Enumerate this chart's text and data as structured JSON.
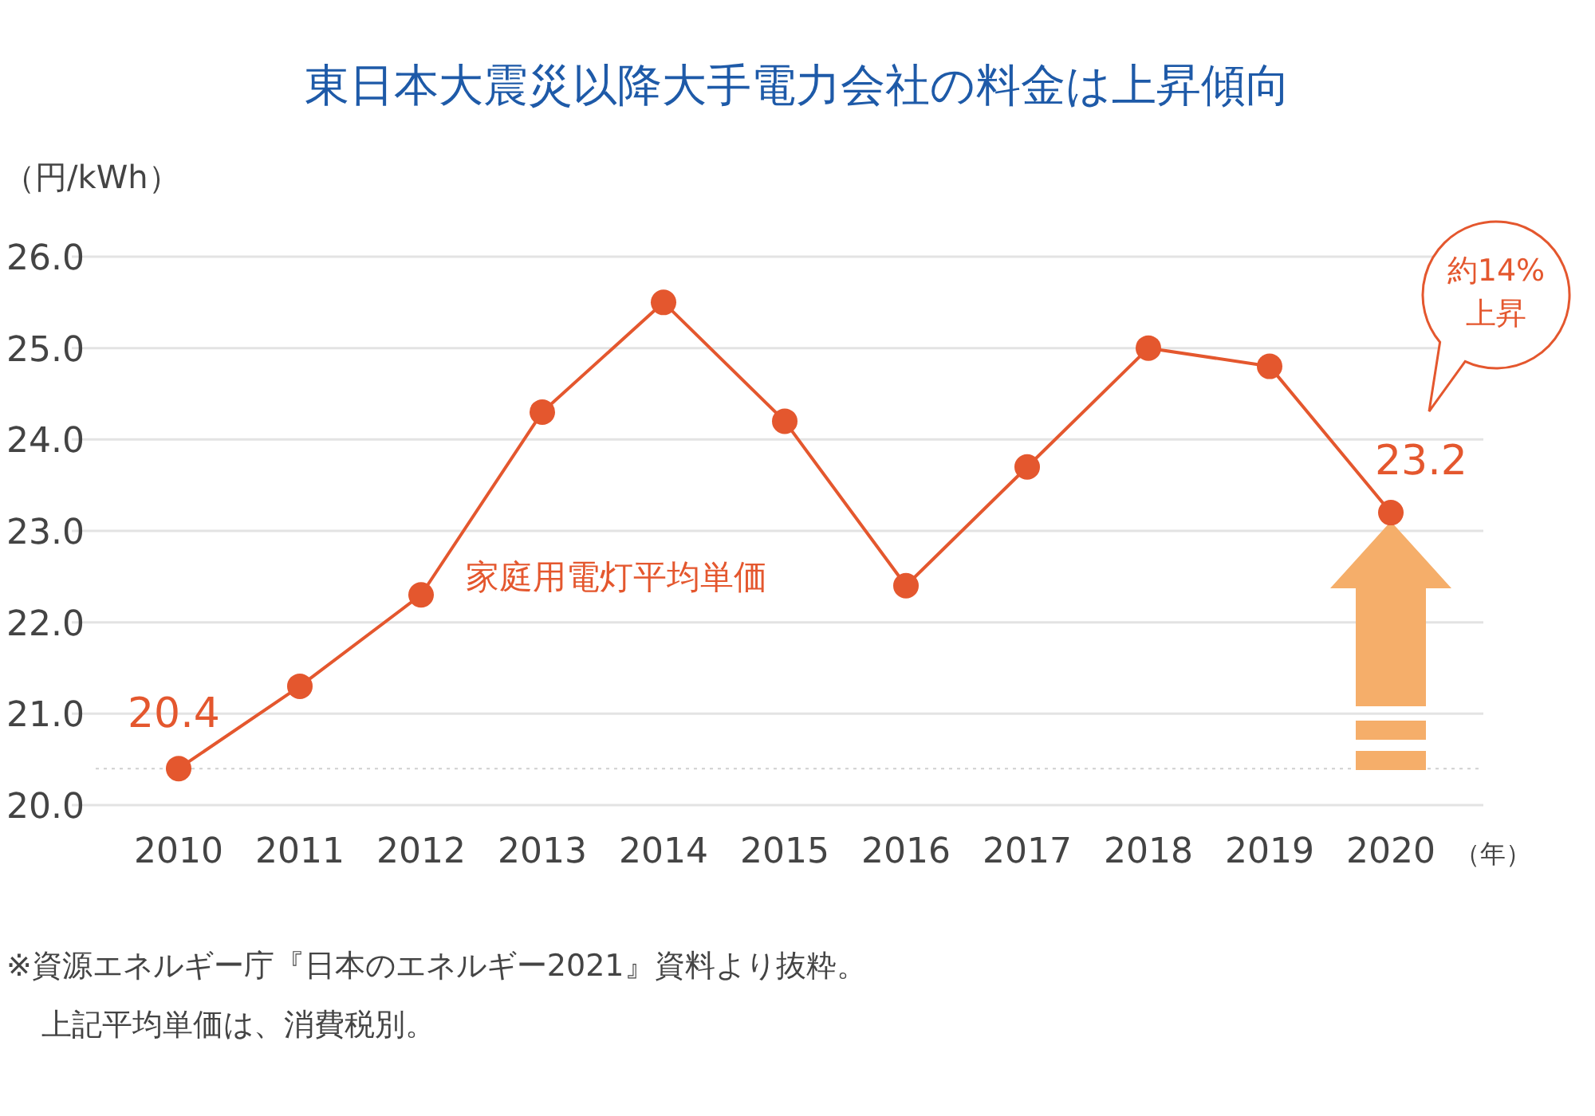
{
  "chart_data": {
    "type": "line",
    "title": "東日本大震災以降大手電力会社の料金は上昇傾向",
    "ylabel": "（円/kWh）",
    "xlabel": "（年）",
    "categories": [
      "2010",
      "2011",
      "2012",
      "2013",
      "2014",
      "2015",
      "2016",
      "2017",
      "2018",
      "2019",
      "2020"
    ],
    "series": [
      {
        "name": "家庭用電灯平均単価",
        "color": "#e4572e",
        "values": [
          20.4,
          21.3,
          22.3,
          24.3,
          25.5,
          24.2,
          22.4,
          23.7,
          25.0,
          24.8,
          23.2
        ],
        "value_labels": [
          "20.4",
          null,
          null,
          null,
          null,
          null,
          null,
          null,
          null,
          null,
          "23.2"
        ]
      }
    ],
    "ylim": [
      20,
      26
    ],
    "yticks": [
      {
        "value": 20,
        "label": "20.0"
      },
      {
        "value": 21,
        "label": "21.0"
      },
      {
        "value": 22,
        "label": "22.0"
      },
      {
        "value": 23,
        "label": "23.0"
      },
      {
        "value": 24,
        "label": "24.0"
      },
      {
        "value": 25,
        "label": "25.0"
      },
      {
        "value": 26,
        "label": "26.0"
      }
    ],
    "ref_lines": [
      {
        "axis": "y",
        "value": 20.4,
        "color": "#d0d0d0",
        "line_style": "dotted"
      }
    ],
    "grid": "y",
    "legend": false,
    "marker": "circle",
    "line_style": "solid",
    "annotations": [
      "約14%上昇",
      "※資源エネルギー庁『日本のエネルギー2021』資料より抜粋。",
      "上記平均単価は、消費税別。"
    ]
  }
}
